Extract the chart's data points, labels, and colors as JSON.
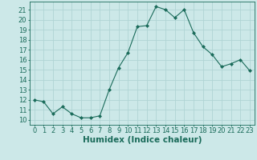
{
  "x": [
    0,
    1,
    2,
    3,
    4,
    5,
    6,
    7,
    8,
    9,
    10,
    11,
    12,
    13,
    14,
    15,
    16,
    17,
    18,
    19,
    20,
    21,
    22,
    23
  ],
  "y": [
    12.0,
    11.8,
    10.6,
    11.3,
    10.6,
    10.2,
    10.2,
    10.4,
    13.0,
    15.2,
    16.7,
    19.3,
    19.4,
    21.3,
    21.0,
    20.2,
    21.0,
    18.7,
    17.3,
    16.5,
    15.3,
    15.6,
    16.0,
    14.9
  ],
  "xlabel": "Humidex (Indice chaleur)",
  "xlim": [
    -0.5,
    23.5
  ],
  "ylim": [
    9.5,
    21.8
  ],
  "yticks": [
    10,
    11,
    12,
    13,
    14,
    15,
    16,
    17,
    18,
    19,
    20,
    21
  ],
  "xticks": [
    0,
    1,
    2,
    3,
    4,
    5,
    6,
    7,
    8,
    9,
    10,
    11,
    12,
    13,
    14,
    15,
    16,
    17,
    18,
    19,
    20,
    21,
    22,
    23
  ],
  "line_color": "#1a6b5a",
  "marker": "D",
  "marker_size": 2.0,
  "bg_color": "#cce8e8",
  "grid_color": "#b0d4d4",
  "xlabel_fontsize": 7.5,
  "tick_fontsize": 6.0
}
